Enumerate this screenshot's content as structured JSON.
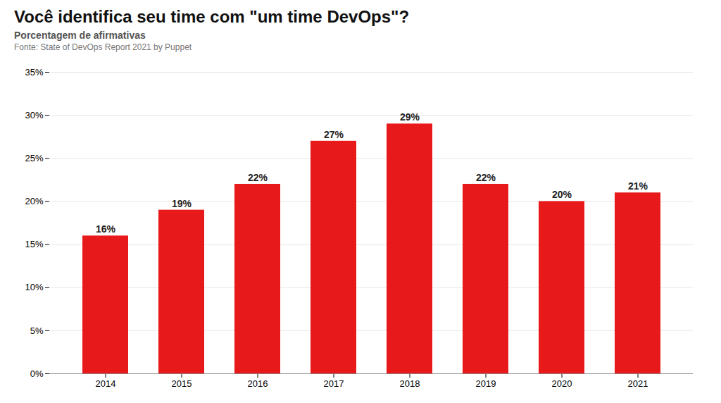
{
  "chart_data": {
    "type": "bar",
    "title": "Você identifica seu time com \"um time DevOps\"?",
    "subtitle": "Porcentagem de afirmativas",
    "source": "Fonte: State of DevOps Report 2021 by Puppet",
    "categories": [
      "2014",
      "2015",
      "2016",
      "2017",
      "2018",
      "2019",
      "2020",
      "2021"
    ],
    "values": [
      16,
      19,
      22,
      27,
      29,
      22,
      20,
      21
    ],
    "value_labels": [
      "16%",
      "19%",
      "22%",
      "27%",
      "29%",
      "22%",
      "20%",
      "21%"
    ],
    "data_labels": true,
    "color": "#E8191A",
    "ylim": [
      0,
      35
    ],
    "yticks": [
      {
        "value": 0,
        "label": "0%"
      },
      {
        "value": 5,
        "label": "5%"
      },
      {
        "value": 10,
        "label": "10%"
      },
      {
        "value": 15,
        "label": "15%"
      },
      {
        "value": 20,
        "label": "20%"
      },
      {
        "value": 25,
        "label": "25%"
      },
      {
        "value": 30,
        "label": "30%"
      },
      {
        "value": 35,
        "label": "35%"
      }
    ],
    "grid": true
  }
}
